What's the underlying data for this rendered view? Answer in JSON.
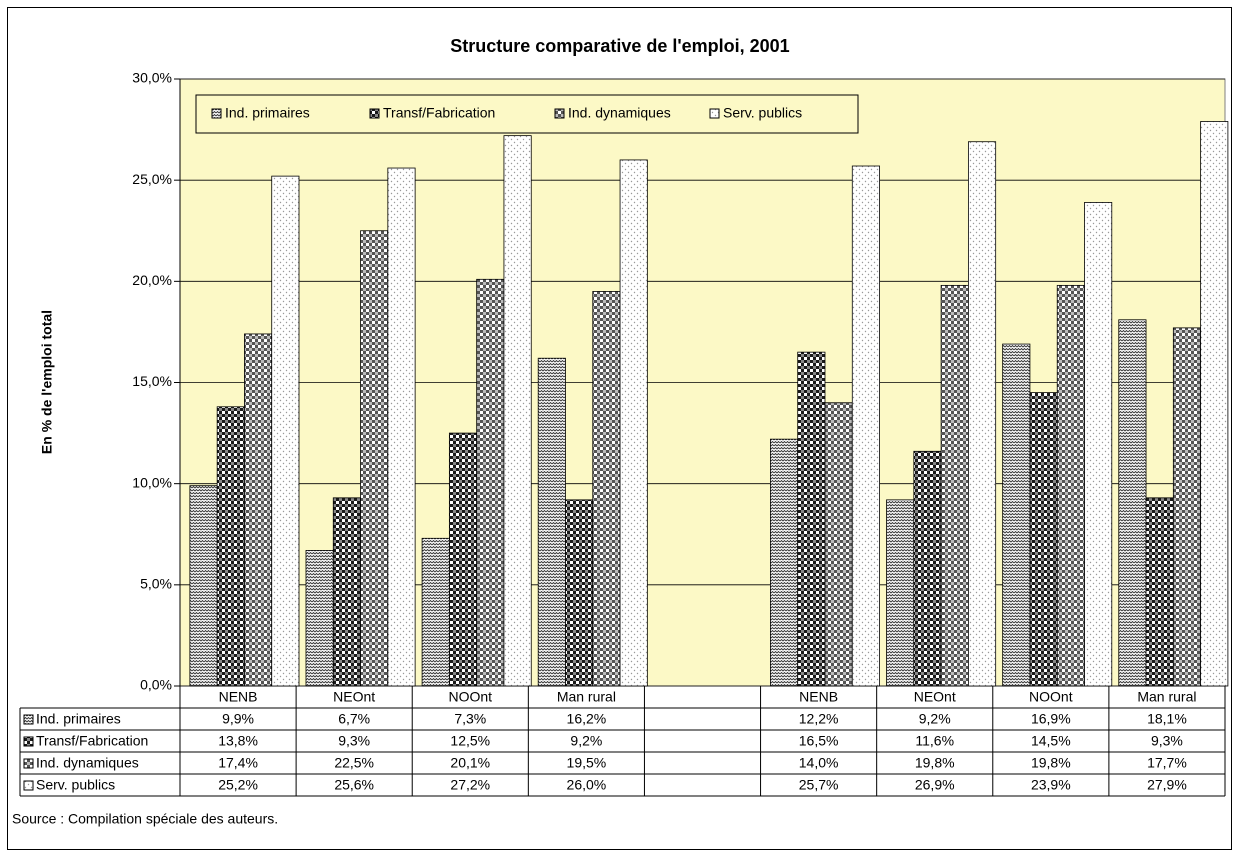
{
  "chart_data": {
    "type": "bar",
    "title": "Structure comparative de l'emploi, 2001",
    "ylabel": "En % de l'emploi total",
    "source": "Source : Compilation spéciale des auteurs.",
    "categories": [
      "NENB",
      "NEOnt",
      "NOOnt",
      "Man rural",
      null,
      "NENB",
      "NEOnt",
      "NOOnt",
      "Man rural"
    ],
    "series": [
      {
        "name": "Ind. primaires",
        "color": "#333333",
        "values": [
          9.9,
          6.7,
          7.3,
          16.2,
          null,
          12.2,
          9.2,
          16.9,
          18.1
        ],
        "value_labels": [
          "9,9%",
          "6,7%",
          "7,3%",
          "16,2%",
          null,
          "12,2%",
          "9,2%",
          "16,9%",
          "18,1%"
        ]
      },
      {
        "name": "Transf/Fabrication",
        "color": "#1a1a1a",
        "values": [
          13.8,
          9.3,
          12.5,
          9.2,
          null,
          16.5,
          11.6,
          14.5,
          9.3
        ],
        "value_labels": [
          "13,8%",
          "9,3%",
          "12,5%",
          "9,2%",
          null,
          "16,5%",
          "11,6%",
          "14,5%",
          "9,3%"
        ]
      },
      {
        "name": "Ind. dynamiques",
        "color": "#555555",
        "values": [
          17.4,
          22.5,
          20.1,
          19.5,
          null,
          14.0,
          19.8,
          19.8,
          17.7
        ],
        "value_labels": [
          "17,4%",
          "22,5%",
          "20,1%",
          "19,5%",
          null,
          "14,0%",
          "19,8%",
          "19,8%",
          "17,7%"
        ]
      },
      {
        "name": "Serv. publics",
        "color": "#999999",
        "values": [
          25.2,
          25.6,
          27.2,
          26.0,
          null,
          25.7,
          26.9,
          23.9,
          27.9
        ],
        "value_labels": [
          "25,2%",
          "25,6%",
          "27,2%",
          "26,0%",
          null,
          "25,7%",
          "26,9%",
          "23,9%",
          "27,9%"
        ]
      }
    ],
    "ylim": [
      0,
      30
    ],
    "yticks": [
      {
        "value": 0,
        "label": "0,0%"
      },
      {
        "value": 5,
        "label": "5,0%"
      },
      {
        "value": 10,
        "label": "10,0%"
      },
      {
        "value": 15,
        "label": "15,0%"
      },
      {
        "value": 20,
        "label": "20,0%"
      },
      {
        "value": 25,
        "label": "25,0%"
      },
      {
        "value": 30,
        "label": "30,0%"
      }
    ],
    "grid": true,
    "legend": "top-left",
    "plot_background": "#fcf9c6"
  }
}
